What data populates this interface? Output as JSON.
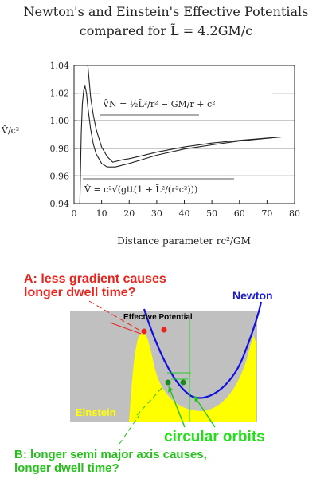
{
  "title_line1": "Newton's and Einstein's Effective Potentials",
  "title_line2": "compared for L̃ = 4.2GM/c",
  "chart_data": {
    "type": "line",
    "title": "Newton's and Einstein's Effective Potentials compared for L̃ = 4.2GM/c",
    "xlabel": "Distance parameter rc²/GM",
    "ylabel": "V̂/c²",
    "xlim": [
      0,
      80
    ],
    "ylim": [
      0.94,
      1.04
    ],
    "xticks": [
      "0",
      "10",
      "20",
      "30",
      "40",
      "50",
      "60",
      "70",
      "80"
    ],
    "yticks": [
      "0.94",
      "0.96",
      "0.98",
      "1.00",
      "1.02",
      "1.04"
    ],
    "grid": "horizontal",
    "series": [
      {
        "name": "V̂N = ½L̃²/r² − GM/r + c²",
        "color": "#222222",
        "x": [
          5.0,
          6,
          7,
          8,
          10,
          12,
          14,
          17.6,
          20,
          25,
          30,
          40,
          50,
          60,
          75
        ],
        "y": [
          1.04,
          1.017,
          1.004,
          0.994,
          0.981,
          0.974,
          0.97,
          0.9717,
          0.9725,
          0.9748,
          0.9772,
          0.981,
          0.9838,
          0.9858,
          0.9882
        ]
      },
      {
        "name": "V̂ = c²√(gtt(1 + L̃²/(r²c²)))",
        "color": "#222222",
        "x": [
          2.1,
          2.6,
          3.0,
          3.5,
          4.0,
          4.5,
          5,
          6,
          7,
          8,
          10,
          12,
          15,
          20,
          25,
          30,
          40,
          50,
          60,
          75
        ],
        "y": [
          0.94,
          0.99,
          1.012,
          1.022,
          1.025,
          1.02,
          1.01,
          0.994,
          0.983,
          0.976,
          0.969,
          0.9665,
          0.9665,
          0.969,
          0.972,
          0.975,
          0.9795,
          0.9825,
          0.9853,
          0.9882
        ]
      }
    ],
    "annotations": [
      "V̂N = ½L̃²/r² − GM/r + c²",
      "V̂ = c²√(gtt(1 + L̃²/(r²c²)))"
    ]
  },
  "diagram": {
    "title": "Effective Potential",
    "newton_label": "Newton",
    "einstein_label": "Einstein",
    "circular_orbits_label": "circular orbits",
    "question_a_line1": "A: less gradient causes",
    "question_a_line2": "longer dwell time?",
    "question_b_line1": "B: longer semi major axis causes,",
    "question_b_line2": "longer dwell time?",
    "colors": {
      "background": "#c0c0c0",
      "einstein_fill": "#ffff00",
      "newton_curve": "#1010e0",
      "red": "#e8251f",
      "green": "#22c218"
    }
  }
}
